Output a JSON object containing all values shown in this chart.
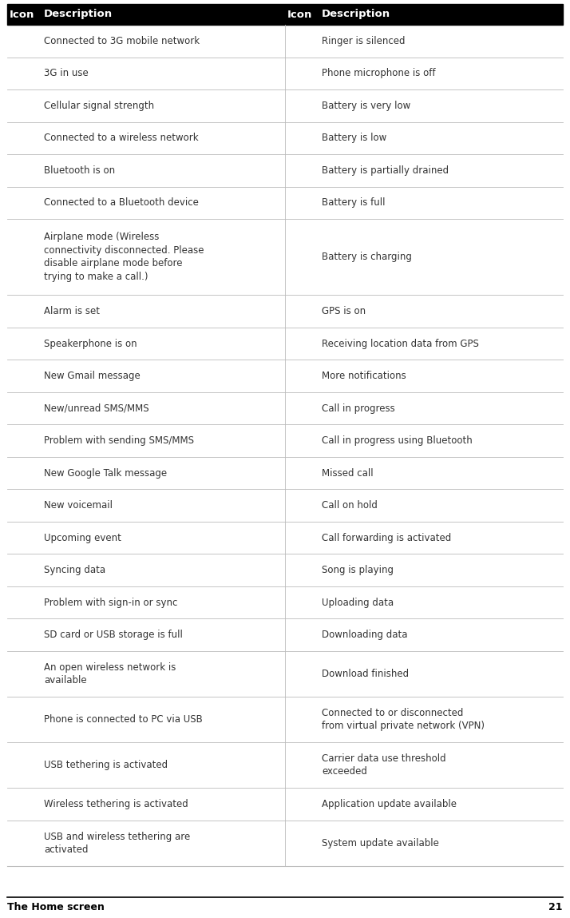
{
  "title_footer": "The Home screen",
  "page_number": "21",
  "header": [
    "Icon",
    "Description",
    "Icon",
    "Description"
  ],
  "header_bg": "#000000",
  "header_text_color": "#ffffff",
  "divider_color": "#bbbbbb",
  "text_color": "#333333",
  "rows": [
    {
      "left_desc": "Connected to 3G mobile network",
      "right_desc": "Ringer is silenced"
    },
    {
      "left_desc": "3G in use",
      "right_desc": "Phone microphone is off"
    },
    {
      "left_desc": "Cellular signal strength",
      "right_desc": "Battery is very low"
    },
    {
      "left_desc": "Connected to a wireless network",
      "right_desc": "Battery is low"
    },
    {
      "left_desc": "Bluetooth is on",
      "right_desc": "Battery is partially drained"
    },
    {
      "left_desc": "Connected to a Bluetooth device",
      "right_desc": "Battery is full"
    },
    {
      "left_desc": "Airplane mode (Wireless\nconnectivity disconnected. Please\ndisable airplane mode before\ntrying to make a call.)",
      "right_desc": "Battery is charging"
    },
    {
      "left_desc": "Alarm is set",
      "right_desc": "GPS is on"
    },
    {
      "left_desc": "Speakerphone is on",
      "right_desc": "Receiving location data from GPS"
    },
    {
      "left_desc": "New Gmail message",
      "right_desc": "More notifications"
    },
    {
      "left_desc": "New/unread SMS/MMS",
      "right_desc": "Call in progress"
    },
    {
      "left_desc": "Problem with sending SMS/MMS",
      "right_desc": "Call in progress using Bluetooth"
    },
    {
      "left_desc": "New Google Talk message",
      "right_desc": "Missed call"
    },
    {
      "left_desc": "New voicemail",
      "right_desc": "Call on hold"
    },
    {
      "left_desc": "Upcoming event",
      "right_desc": "Call forwarding is activated"
    },
    {
      "left_desc": "Syncing data",
      "right_desc": "Song is playing"
    },
    {
      "left_desc": "Problem with sign-in or sync",
      "right_desc": "Uploading data"
    },
    {
      "left_desc": "SD card or USB storage is full",
      "right_desc": "Downloading data"
    },
    {
      "left_desc": "An open wireless network is\navailable",
      "right_desc": "Download finished"
    },
    {
      "left_desc": "Phone is connected to PC via USB",
      "right_desc": "Connected to or disconnected\nfrom virtual private network (VPN)"
    },
    {
      "left_desc": "USB tethering is activated",
      "right_desc": "Carrier data use threshold\nexceeded"
    },
    {
      "left_desc": "Wireless tethering is activated",
      "right_desc": "Application update available"
    },
    {
      "left_desc": "USB and wireless tethering are\nactivated",
      "right_desc": "System update available"
    }
  ],
  "figsize": [
    7.14,
    11.49
  ],
  "dpi": 100,
  "font_size_header": 9.5,
  "font_size_body": 8.5,
  "font_size_footer": 9
}
